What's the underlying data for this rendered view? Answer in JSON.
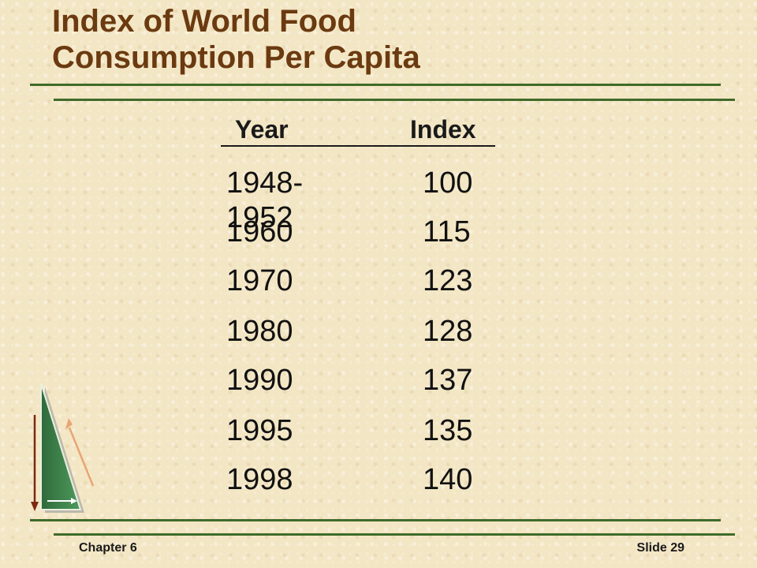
{
  "slide": {
    "title_line1": "Index of World Food",
    "title_line2": "Consumption Per Capita",
    "colors": {
      "title": "#6b3a10",
      "rules": "#3f6b2a",
      "background": "#f3e6c4"
    }
  },
  "table": {
    "headers": {
      "year": "Year",
      "index": "Index"
    },
    "rows": [
      {
        "year": "1948-1952",
        "index": "100"
      },
      {
        "year": "1960",
        "index": "115"
      },
      {
        "year": "1970",
        "index": "123"
      },
      {
        "year": "1980",
        "index": "128"
      },
      {
        "year": "1990",
        "index": "137"
      },
      {
        "year": "1995",
        "index": "135"
      },
      {
        "year": "1998",
        "index": "140"
      }
    ]
  },
  "footer": {
    "chapter": "Chapter 6",
    "slide_number": "Slide 29"
  },
  "logo": {
    "icon": "green-triangle-arrows-icon"
  }
}
